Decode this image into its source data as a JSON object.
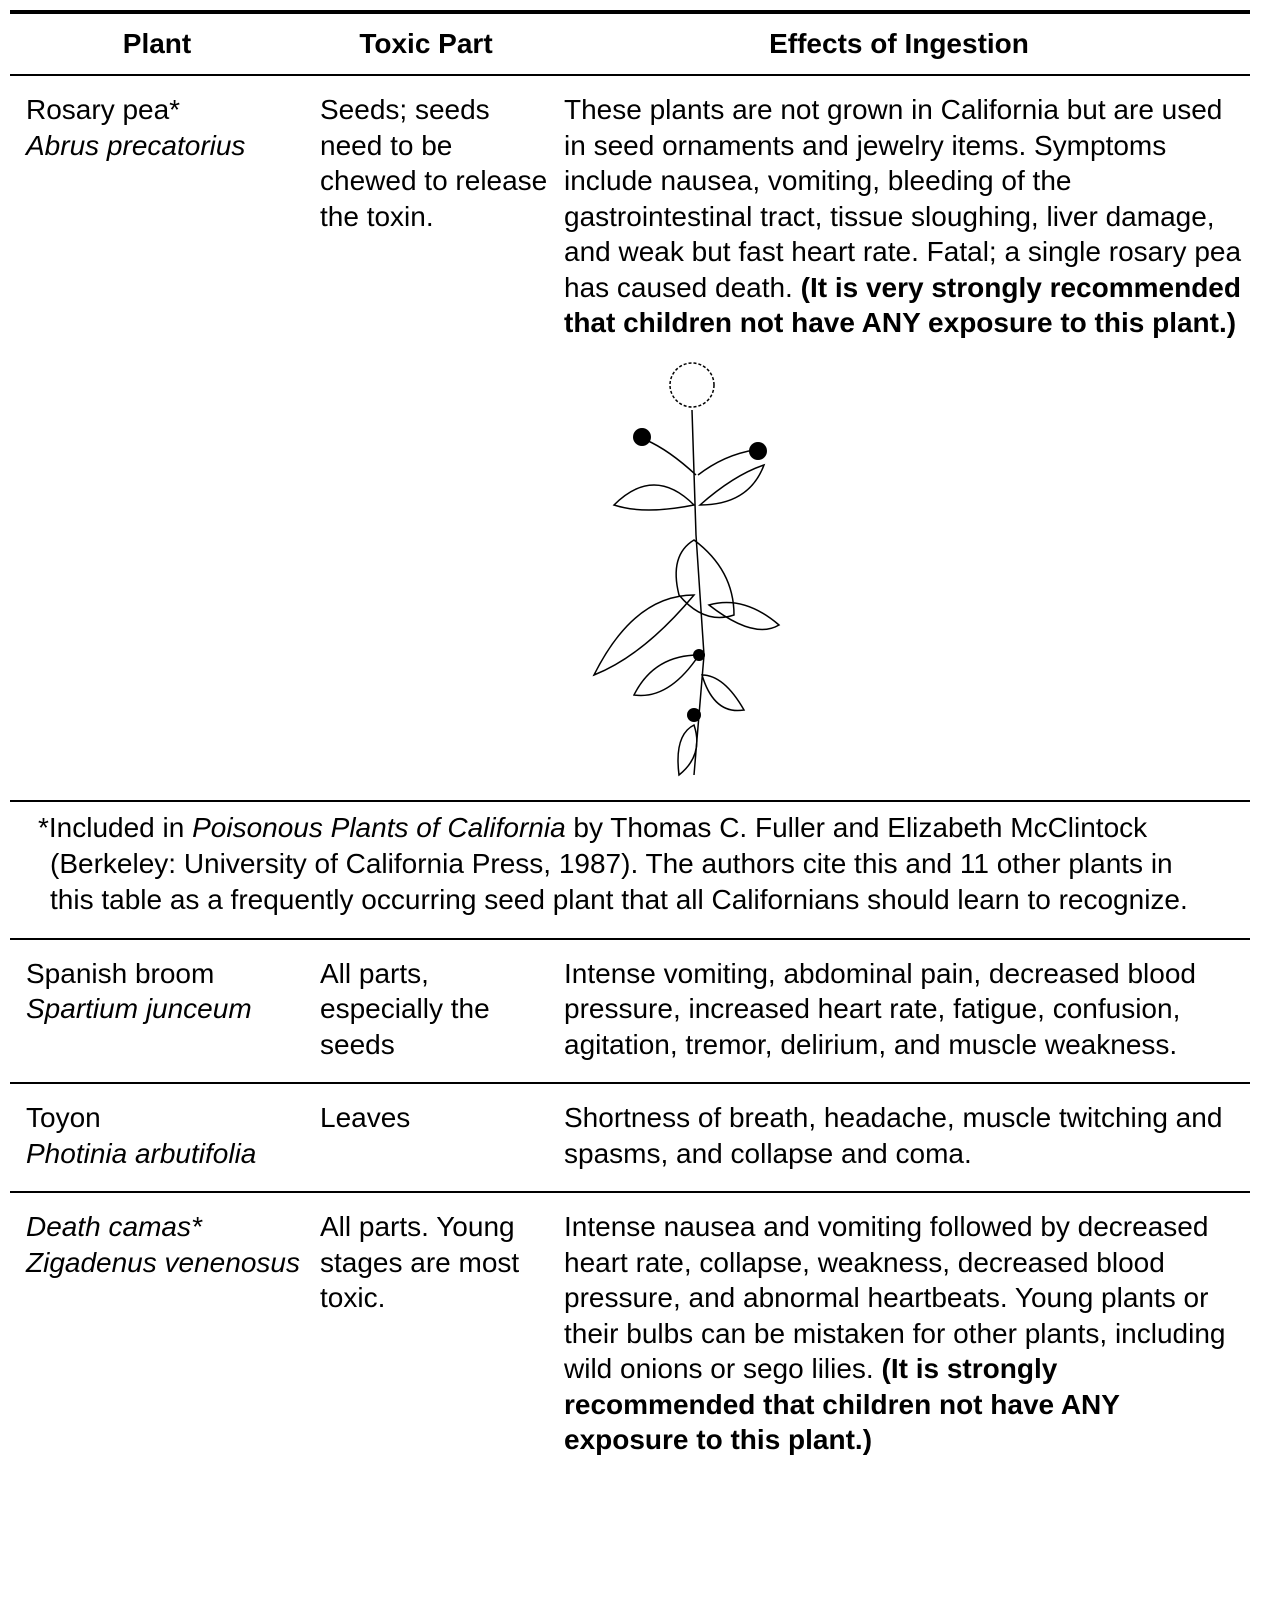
{
  "header": [
    "Plant",
    "Toxic Part",
    "Effects of Ingestion"
  ],
  "rows": [
    {
      "plant": "Rosary pea*",
      "scientific": "Abrus precatorius",
      "toxic_part": "Seeds; seeds need to be chewed to release the toxin.",
      "effects": "These plants are not grown in California but are used in seed ornaments and jewelry items. Symptoms include nausea, vomiting, bleeding of the gastrointestinal tract, tissue sloughing, liver damage, and weak but fast heart rate. Fatal; a single rosary pea has caused death.",
      "warning": "(It is very strongly recommended that children not have ANY exposure to this plant.)"
    },
    {
      "plant": "Spanish broom",
      "scientific": "Spartium junceum",
      "toxic_part": "All parts, especially the seeds",
      "effects": "Intense vomiting, abdominal pain, decreased blood pressure, increased heart rate, fatigue, confusion, agitation, tremor, delirium, and muscle weakness."
    },
    {
      "plant": "Toyon",
      "scientific": "Photinia arbutifolia",
      "toxic_part": "Leaves",
      "effects": "Shortness of breath, headache, muscle twitching and spasms, and collapse and coma."
    },
    {
      "plant": "Death camas*",
      "scientific": "Zigadenus venenosus",
      "toxic_part": "All parts. Young stages are most toxic.",
      "effects": "Intense nausea and vomiting followed by decreased heart rate, collapse, weakness, decreased blood pressure, and abnormal heartbeats. Young plants or their bulbs can be mistaken for other plants, including wild onions or sego lilies.",
      "warning": "(It is strongly recommended that children not have ANY exposure to this plant.)"
    }
  ],
  "footnote": {
    "before": "*Included in ",
    "title": "Poisonous Plants of California",
    "after": " by Thomas C. Fuller and Elizabeth McClintock (Berkeley: University of California Press, 1987). The authors cite this and 11 other plants in this table as a frequently occurring seed plant that all Californians should learn to recognize."
  }
}
